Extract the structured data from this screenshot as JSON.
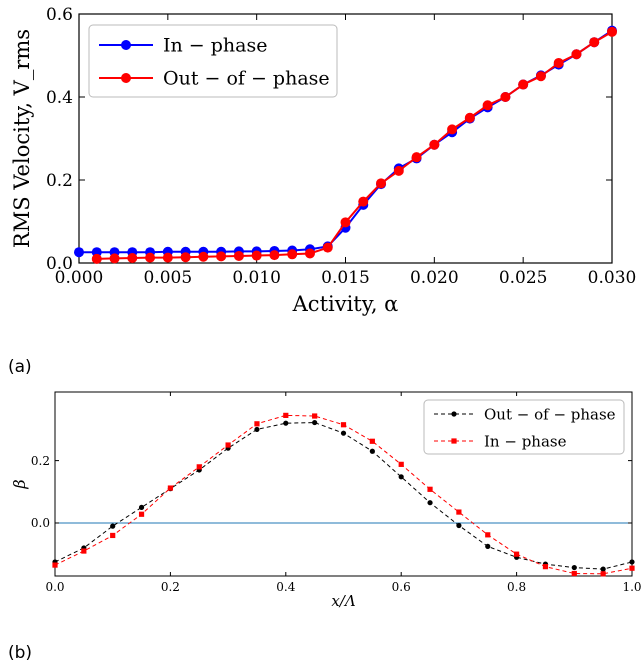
{
  "panel_labels": [
    "(a)",
    "(b)"
  ],
  "chart_data": [
    {
      "type": "line",
      "xlabel": "Activity,  α",
      "ylabel": "RMS Velocity,  V_rms",
      "xlim": [
        0,
        0.03
      ],
      "ylim": [
        0,
        0.6
      ],
      "xticks": [
        "0.000",
        "0.005",
        "0.010",
        "0.015",
        "0.020",
        "0.025",
        "0.030"
      ],
      "yticks": [
        "0.0",
        "0.2",
        "0.4",
        "0.6"
      ],
      "grid": false,
      "legend_position": "upper-left",
      "series": [
        {
          "name": "In − phase",
          "color": "#0000ff",
          "marker": "circle",
          "line": "solid",
          "x": [
            0.0,
            0.001,
            0.002,
            0.003,
            0.004,
            0.005,
            0.006,
            0.007,
            0.008,
            0.009,
            0.01,
            0.011,
            0.012,
            0.013,
            0.014,
            0.015,
            0.016,
            0.017,
            0.018,
            0.019,
            0.02,
            0.021,
            0.022,
            0.023,
            0.024,
            0.025,
            0.026,
            0.027,
            0.028,
            0.029,
            0.03
          ],
          "y": [
            0.026,
            0.026,
            0.026,
            0.026,
            0.026,
            0.027,
            0.027,
            0.027,
            0.027,
            0.028,
            0.028,
            0.029,
            0.03,
            0.033,
            0.04,
            0.085,
            0.14,
            0.19,
            0.228,
            0.252,
            0.285,
            0.315,
            0.348,
            0.375,
            0.4,
            0.43,
            0.452,
            0.478,
            0.503,
            0.532,
            0.56
          ]
        },
        {
          "name": "Out − of − phase",
          "color": "#ff0000",
          "marker": "circle",
          "line": "solid",
          "x": [
            0.001,
            0.002,
            0.003,
            0.004,
            0.005,
            0.006,
            0.007,
            0.008,
            0.009,
            0.01,
            0.011,
            0.012,
            0.013,
            0.014,
            0.015,
            0.016,
            0.017,
            0.018,
            0.019,
            0.02,
            0.021,
            0.022,
            0.023,
            0.024,
            0.025,
            0.026,
            0.027,
            0.028,
            0.029,
            0.03
          ],
          "y": [
            0.01,
            0.011,
            0.012,
            0.013,
            0.013,
            0.014,
            0.015,
            0.016,
            0.017,
            0.018,
            0.019,
            0.021,
            0.023,
            0.037,
            0.098,
            0.148,
            0.192,
            0.222,
            0.255,
            0.285,
            0.322,
            0.35,
            0.38,
            0.4,
            0.43,
            0.45,
            0.482,
            0.503,
            0.532,
            0.557
          ]
        }
      ]
    },
    {
      "type": "line",
      "xlabel": "x/Λ",
      "ylabel": "β",
      "xlim": [
        0,
        1
      ],
      "ylim": [
        -0.17,
        0.42
      ],
      "xticks": [
        "0.0",
        "0.2",
        "0.4",
        "0.6",
        "0.8",
        "1.0"
      ],
      "yticks": [
        "0.0",
        "0.2"
      ],
      "grid": false,
      "hline": {
        "y": 0.0,
        "color": "#1f77b4"
      },
      "legend_position": "upper-right",
      "series": [
        {
          "name": "Out − of − phase",
          "color": "#000000",
          "marker": "circle",
          "line": "dashed",
          "x": [
            0.0,
            0.05,
            0.1,
            0.15,
            0.2,
            0.25,
            0.3,
            0.35,
            0.4,
            0.45,
            0.5,
            0.55,
            0.6,
            0.65,
            0.7,
            0.75,
            0.8,
            0.85,
            0.9,
            0.95,
            1.0
          ],
          "y": [
            -0.125,
            -0.08,
            -0.01,
            0.05,
            0.11,
            0.17,
            0.24,
            0.3,
            0.32,
            0.322,
            0.288,
            0.23,
            0.148,
            0.065,
            -0.008,
            -0.075,
            -0.11,
            -0.132,
            -0.143,
            -0.148,
            -0.125
          ]
        },
        {
          "name": "In − phase",
          "color": "#ff0000",
          "marker": "square",
          "line": "dashed",
          "x": [
            0.0,
            0.05,
            0.1,
            0.15,
            0.2,
            0.25,
            0.3,
            0.35,
            0.4,
            0.45,
            0.5,
            0.55,
            0.6,
            0.65,
            0.7,
            0.75,
            0.8,
            0.85,
            0.9,
            0.95,
            1.0
          ],
          "y": [
            -0.135,
            -0.09,
            -0.04,
            0.028,
            0.112,
            0.18,
            0.25,
            0.318,
            0.345,
            0.343,
            0.315,
            0.262,
            0.188,
            0.108,
            0.035,
            -0.038,
            -0.1,
            -0.14,
            -0.162,
            -0.163,
            -0.145
          ]
        }
      ]
    }
  ]
}
